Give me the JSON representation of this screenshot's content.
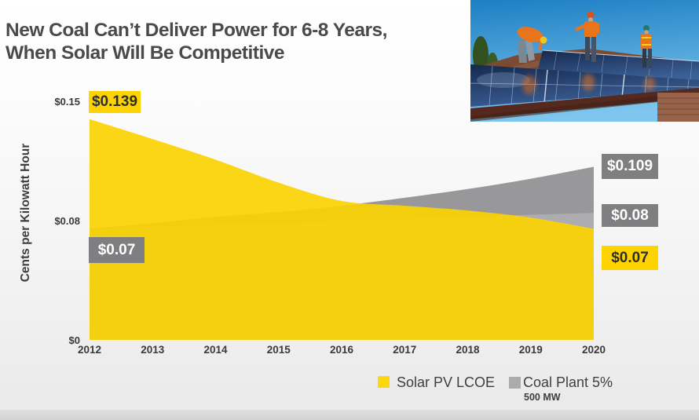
{
  "header": {
    "title_line1": "New Coal Can’t Deliver Power for 6-8 Years,",
    "title_line2": "When Solar Will Be Competitive"
  },
  "photo": {
    "description": "Three workers in orange safety vests and hard hats installing blue solar panels on a rooftop under a blue sky"
  },
  "axis": {
    "ylabel": "Cents per Kilowatt Hour"
  },
  "callouts": {
    "solar_2012": "$0.139",
    "coal_2012": "$0.07",
    "coal_2020_high": "$0.109",
    "coal_2020_low": "$0.08",
    "solar_2020": "$0.07"
  },
  "legend": {
    "items": [
      {
        "label": "Solar PV LCOE",
        "sub": "",
        "color": "#ffd60a"
      },
      {
        "label": "Coal Plant 5%",
        "sub": "500 MW",
        "color": "#ababab"
      }
    ]
  },
  "colors": {
    "solar_area": "#fbd303",
    "coal_upper_area": "#98989a",
    "coal_lower_area": "#adadaf",
    "gray_label_box": "#7f7f81",
    "yellow_label_box": "#fdd400",
    "title_text": "#4a4a4a"
  },
  "chart_data": {
    "type": "area",
    "title": "New Coal Can’t Deliver Power for 6-8 Years, When Solar Will Be Competitive",
    "xlabel": "",
    "ylabel": "Cents per Kilowatt Hour",
    "x": [
      2012,
      2013,
      2014,
      2015,
      2016,
      2017,
      2018,
      2019,
      2020
    ],
    "series": [
      {
        "name": "Solar PV LCOE",
        "color": "#fbd303",
        "values": [
          0.139,
          0.1265,
          0.1135,
          0.099,
          0.0875,
          0.0845,
          0.0815,
          0.077,
          0.07
        ]
      },
      {
        "name": "Coal Plant 5% 500 MW (upper gray band)",
        "color": "#98989a",
        "values": [
          0.07,
          0.0735,
          0.0775,
          0.0805,
          0.0845,
          0.0895,
          0.095,
          0.1015,
          0.109
        ]
      },
      {
        "name": "Coal Plant 5% 500 MW (lower gray band)",
        "color": "#adadaf",
        "values": [
          0.07,
          0.0713,
          0.0725,
          0.0738,
          0.075,
          0.0763,
          0.0775,
          0.0788,
          0.08
        ]
      }
    ],
    "yticks": [
      {
        "label": "$0.15",
        "value": 0.15
      },
      {
        "label": "$0.08",
        "value": 0.08
      },
      {
        "label": "$0",
        "value": 0
      }
    ],
    "ylim": [
      0,
      0.155
    ],
    "xlim": [
      2012,
      2020
    ],
    "grid": false,
    "legend_position": "bottom",
    "annotations": [
      {
        "text": "$0.139",
        "series": "Solar PV LCOE",
        "x": 2012,
        "style": "yellow-box"
      },
      {
        "text": "$0.07",
        "series": "Coal Plant 5% 500 MW",
        "x": 2012,
        "style": "gray-box"
      },
      {
        "text": "$0.109",
        "series": "Coal Plant 5% 500 MW (upper)",
        "x": 2020,
        "style": "gray-box"
      },
      {
        "text": "$0.08",
        "series": "Coal Plant 5% 500 MW (lower)",
        "x": 2020,
        "style": "gray-box"
      },
      {
        "text": "$0.07",
        "series": "Solar PV LCOE",
        "x": 2020,
        "style": "yellow-box"
      }
    ]
  }
}
